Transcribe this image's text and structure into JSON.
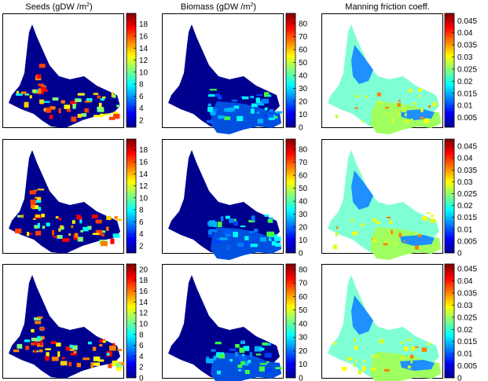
{
  "chart_data": {
    "type": "heatmap",
    "column_titles": [
      {
        "base": "Seeds (gDW /m",
        "sup": "2",
        "end": ")"
      },
      {
        "base": "Biomass (gDW /m",
        "sup": "2",
        "end": ")"
      },
      {
        "base": "Manning friction coeff.",
        "sup": "",
        "end": ""
      }
    ],
    "colormap": "jet",
    "panels": [
      {
        "row": 0,
        "variable": "seeds",
        "colorbar_ticks": [
          "2",
          "4",
          "6",
          "8",
          "10",
          "12",
          "14",
          "16",
          "18"
        ],
        "clim": [
          0.8,
          19.8
        ]
      },
      {
        "row": 0,
        "variable": "biomass",
        "colorbar_ticks": [
          "0",
          "10",
          "20",
          "30",
          "40",
          "50",
          "60",
          "70",
          "80"
        ],
        "clim": [
          0,
          88
        ]
      },
      {
        "row": 0,
        "variable": "manning",
        "colorbar_ticks": [
          "0.005",
          "0.01",
          "0.015",
          "0.02",
          "0.025",
          "0.03",
          "0.035",
          "0.04",
          "0.045"
        ],
        "clim": [
          0.001,
          0.048
        ]
      },
      {
        "row": 1,
        "variable": "seeds",
        "colorbar_ticks": [
          "2",
          "4",
          "6",
          "8",
          "10",
          "12",
          "14",
          "16",
          "18"
        ],
        "clim": [
          0.8,
          19.8
        ]
      },
      {
        "row": 1,
        "variable": "biomass",
        "colorbar_ticks": [
          "0",
          "10",
          "20",
          "30",
          "40",
          "50",
          "60",
          "70",
          "80"
        ],
        "clim": [
          0,
          88
        ]
      },
      {
        "row": 1,
        "variable": "manning",
        "colorbar_ticks": [
          "0",
          "0.005",
          "0.01",
          "0.015",
          "0.02",
          "0.025",
          "0.03",
          "0.035",
          "0.04",
          "0.045"
        ],
        "clim": [
          0,
          0.048
        ]
      },
      {
        "row": 2,
        "variable": "seeds",
        "colorbar_ticks": [
          "0",
          "2",
          "4",
          "6",
          "8",
          "10",
          "12",
          "14",
          "16",
          "18",
          "20"
        ],
        "clim": [
          0,
          21
        ]
      },
      {
        "row": 2,
        "variable": "biomass",
        "colorbar_ticks": [
          "0",
          "10",
          "20",
          "30",
          "40",
          "50",
          "60",
          "70",
          "80"
        ],
        "clim": [
          0,
          84
        ]
      },
      {
        "row": 2,
        "variable": "manning",
        "colorbar_ticks": [
          "0",
          "0.005",
          "0.01",
          "0.015",
          "0.02",
          "0.025",
          "0.03",
          "0.035",
          "0.04",
          "0.045"
        ],
        "clim": [
          0,
          0.047
        ]
      }
    ]
  }
}
